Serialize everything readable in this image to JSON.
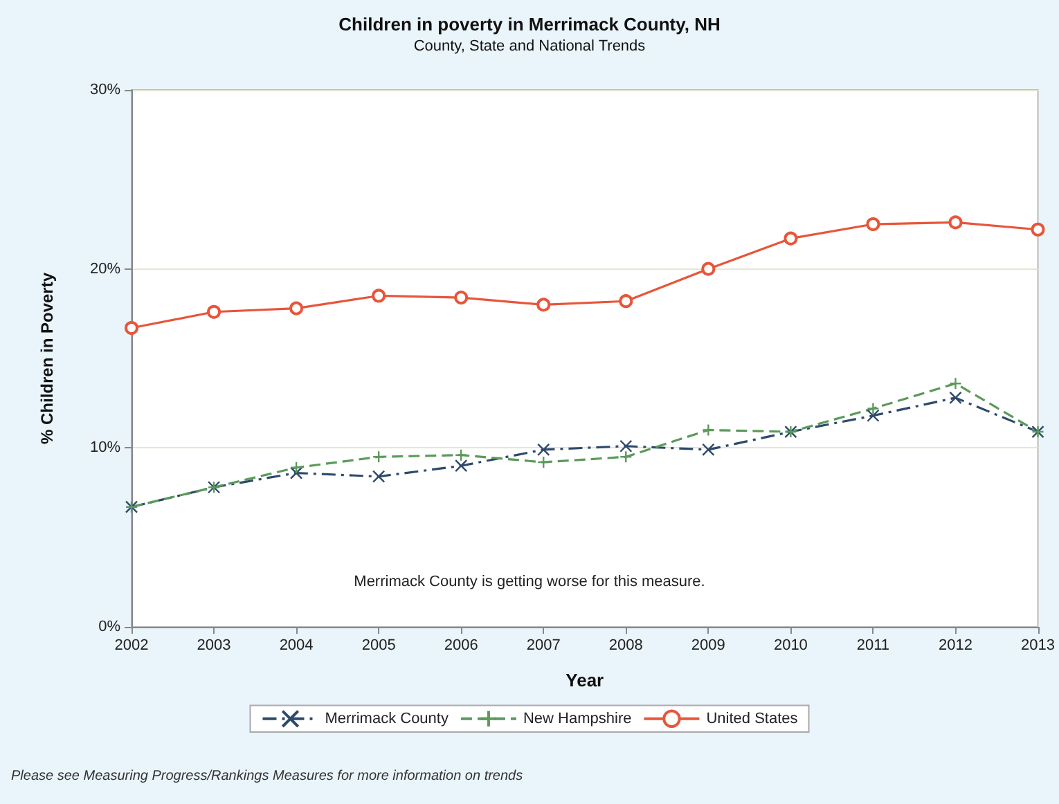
{
  "chart_data": {
    "type": "line",
    "title": "Children in poverty in Merrimack County, NH",
    "subtitle": "County, State and National Trends",
    "xlabel": "Year",
    "ylabel": "% Children in Poverty",
    "categories": [
      "2002",
      "2003",
      "2004",
      "2005",
      "2006",
      "2007",
      "2008",
      "2009",
      "2010",
      "2011",
      "2012",
      "2013"
    ],
    "series": [
      {
        "name": "Merrimack County",
        "color": "#2e4a6b",
        "marker": "cross",
        "line_style": "dashdot",
        "values": [
          6.7,
          7.8,
          8.6,
          8.4,
          9.0,
          9.9,
          10.1,
          9.9,
          10.9,
          11.8,
          12.8,
          10.9
        ]
      },
      {
        "name": "New Hampshire",
        "color": "#5a9a5a",
        "marker": "plus",
        "line_style": "dashed",
        "values": [
          6.7,
          7.8,
          8.9,
          9.5,
          9.6,
          9.2,
          9.5,
          11.0,
          10.9,
          12.2,
          13.6,
          10.9
        ]
      },
      {
        "name": "United States",
        "color": "#e8553a",
        "marker": "circle",
        "line_style": "solid",
        "values": [
          16.7,
          17.6,
          17.8,
          18.5,
          18.4,
          18.0,
          18.2,
          20.0,
          21.7,
          22.5,
          22.6,
          22.2
        ]
      }
    ],
    "ylim": [
      0,
      30
    ],
    "yticks": [
      {
        "value": 0,
        "label": "0%"
      },
      {
        "value": 10,
        "label": "10%"
      },
      {
        "value": 20,
        "label": "20%"
      },
      {
        "value": 30,
        "label": "30%"
      }
    ],
    "grid": "y",
    "legend": "bottom",
    "annotations": [
      "Merrimack County is getting worse for this measure.",
      "Please see Measuring Progress/Rankings Measures for more information on trends"
    ]
  }
}
